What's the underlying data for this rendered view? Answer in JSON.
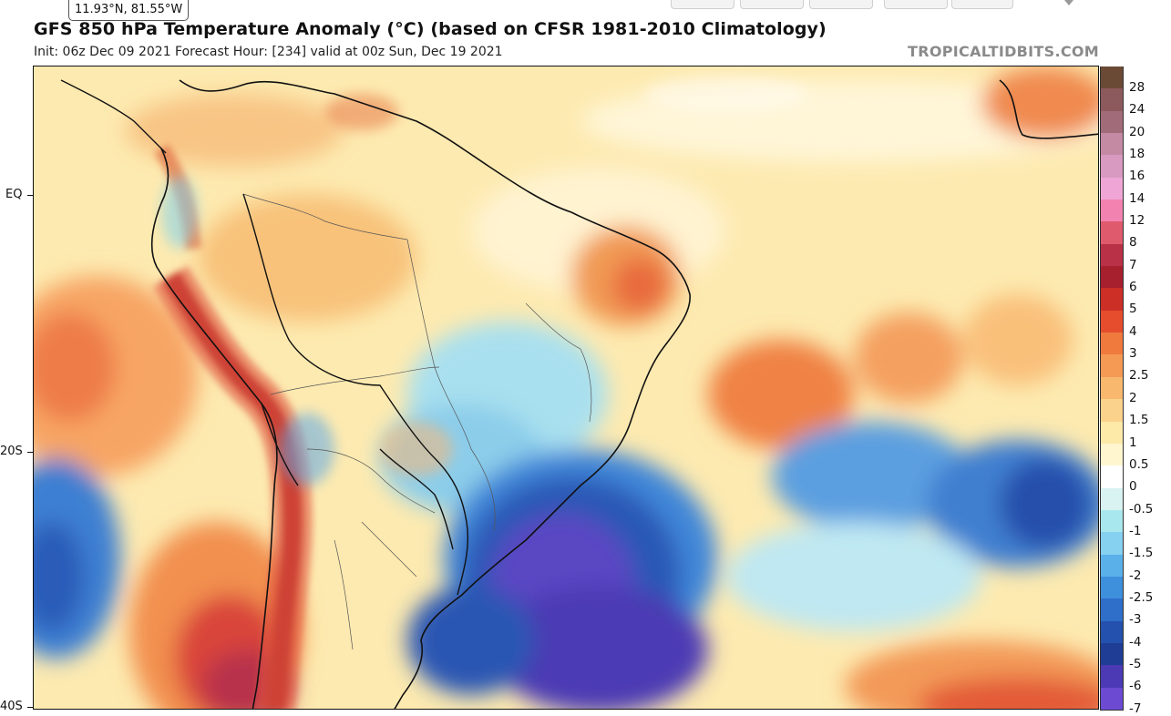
{
  "coord_readout": "11.93°N, 81.55°W",
  "title": "GFS 850 hPa Temperature Anomaly (°C) (based on CFSR 1981-2010 Climatology)",
  "subtitle": "Init: 06z Dec 09 2021   Forecast Hour: [234]   valid at 00z Sun, Dec 19 2021",
  "brand": "TROPICALTIDBITS.COM",
  "lat_labels": [
    "EQ",
    "20S",
    "40S"
  ],
  "colorbar": {
    "labels": [
      "28",
      "24",
      "20",
      "18",
      "16",
      "14",
      "12",
      "8",
      "7",
      "6",
      "5",
      "4",
      "3",
      "2.5",
      "2",
      "1.5",
      "1",
      "0.5",
      "0",
      "-0.5",
      "-1",
      "-1.5",
      "-2",
      "-2.5",
      "-3",
      "-4",
      "-5",
      "-6",
      "-7"
    ],
    "colors": [
      "#6b4a35",
      "#8c5a5c",
      "#a26b7a",
      "#c48aa4",
      "#d89ac0",
      "#efa6d6",
      "#f283b0",
      "#e05a6e",
      "#b83146",
      "#a6202e",
      "#cc2f26",
      "#e54d2c",
      "#f07a3e",
      "#f59a55",
      "#f8b86d",
      "#fbd28c",
      "#fde9a8",
      "#fff6cf",
      "#ffffff",
      "#d8f3f1",
      "#a9e7ee",
      "#86d0f0",
      "#5ab1ea",
      "#3e8fdc",
      "#2f6fca",
      "#2451ad",
      "#1f3d95",
      "#4b3ab4",
      "#6c4ad2"
    ],
    "units": "°C"
  },
  "regions": {
    "atlantic_warm_east": "warm",
    "brazil_cold_southeast": "cold",
    "andes_warm": "warm",
    "pacific_cold_west": "cold"
  }
}
